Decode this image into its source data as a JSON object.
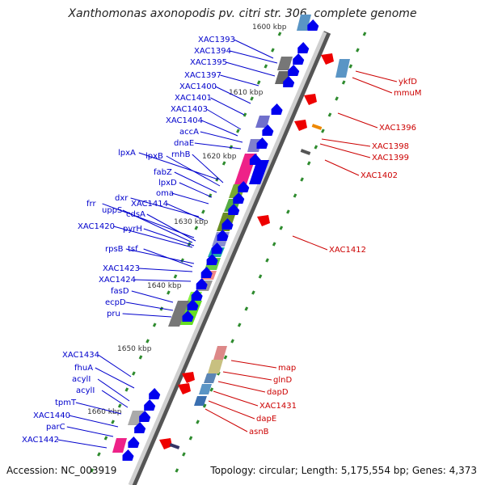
{
  "title": "Xanthomonas axonopodis pv. citri str. 306, complete genome",
  "accession": "Accession: NC_003919",
  "summary": "Topology: circular; Length: 5,175,554 bp; Genes: 4,373",
  "colors": {
    "blue_label": "#0000cc",
    "red_label": "#cc0000",
    "forward_arrow": "#0000ee",
    "reverse_arrow": "#ee0000",
    "backbone": "#888888",
    "tick": "#2e8b2e"
  },
  "kbp_ticks": [
    "1600 kbp",
    "1610 kbp",
    "1620 kbp",
    "1630 kbp",
    "1640 kbp",
    "1650 kbp",
    "1660 kbp"
  ],
  "left_genes": [
    "XAC1393",
    "XAC1394",
    "XAC1395",
    "XAC1397",
    "XAC1400",
    "XAC1401",
    "XAC1403",
    "XAC1404",
    "accA",
    "dnaE",
    "lpxA",
    "lpxB",
    "rnhB",
    "fabZ",
    "lpxD",
    "oma",
    "dxr",
    "XAC1414",
    "frr",
    "uppS",
    "cdsA",
    "XAC1420",
    "pyrH",
    "rpsB",
    "tsf",
    "XAC1423",
    "XAC1424",
    "fasD",
    "ecpD",
    "pru",
    "XAC1434",
    "fhuA",
    "acylI",
    "acylI",
    "tpmT",
    "XAC1440",
    "parC",
    "XAC1442"
  ],
  "right_genes": [
    "ykfD",
    "mmuM",
    "XAC1396",
    "XAC1398",
    "XAC1399",
    "XAC1402",
    "XAC1412",
    "map",
    "glnD",
    "dapD",
    "XAC1431",
    "dapE",
    "asnB"
  ]
}
